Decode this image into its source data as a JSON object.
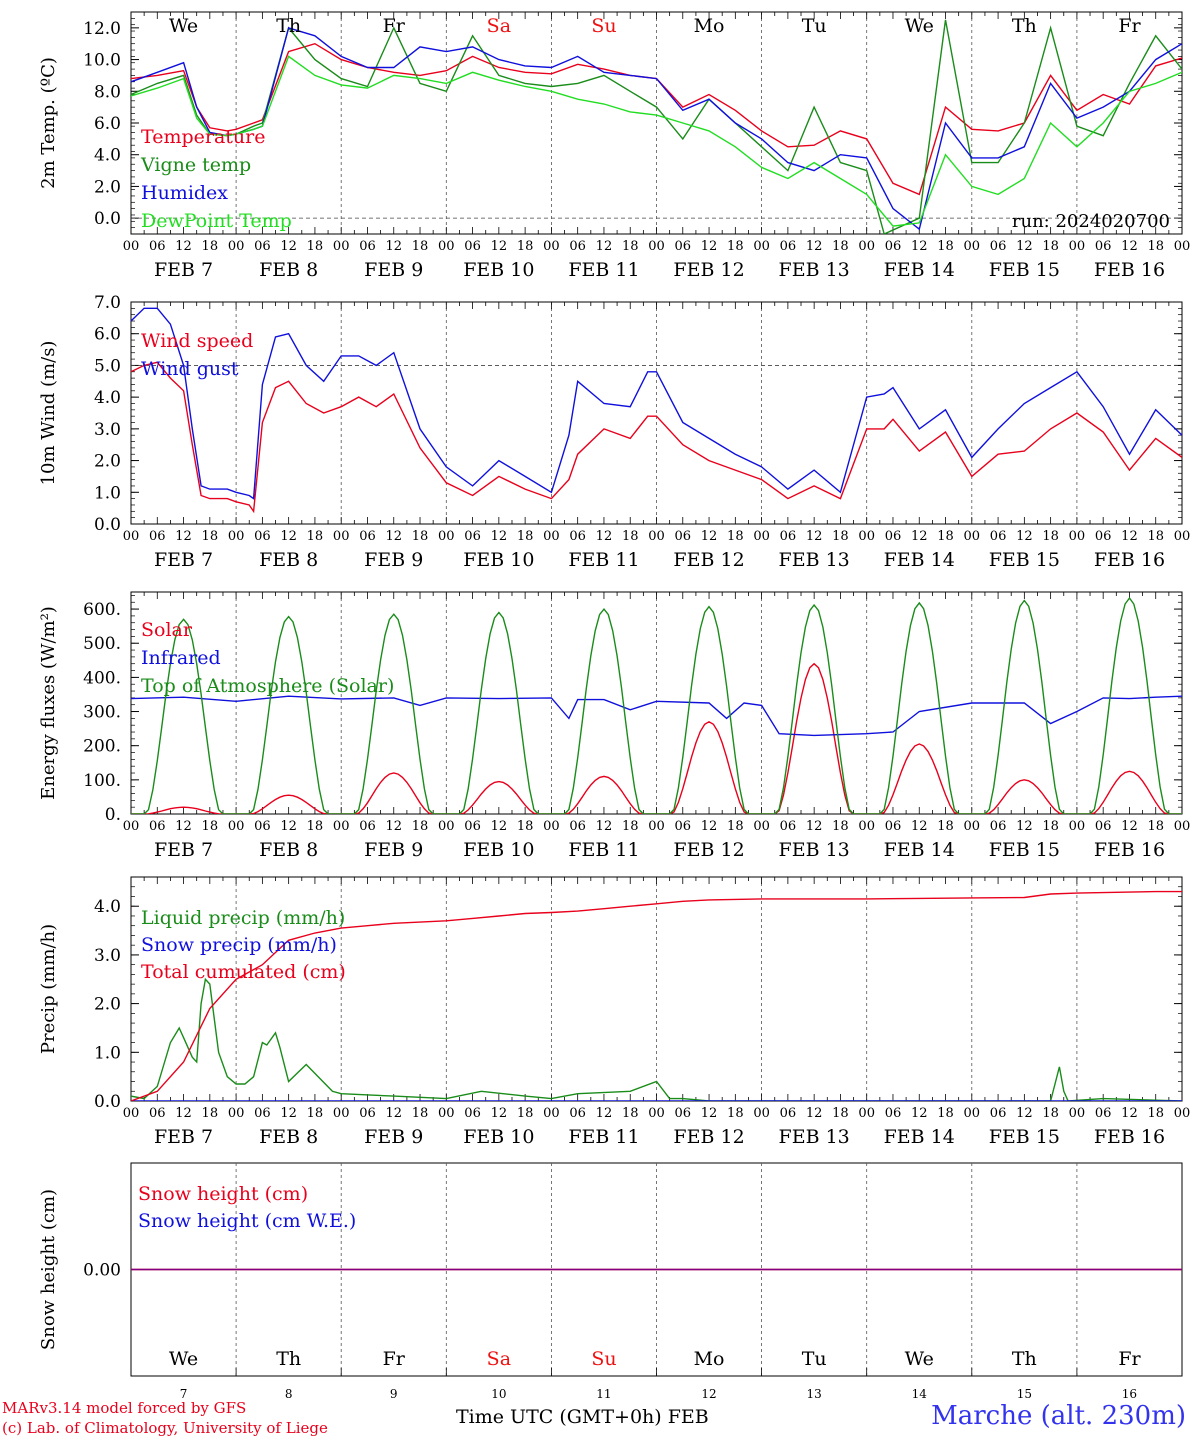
{
  "station": "Marche (alt. 230m)",
  "credits": [
    "MARv3.14 model forced by GFS",
    "(c) Lab. of Climatology, University of Liege"
  ],
  "x_axis_title": "Time UTC (GMT+0h) FEB",
  "hour_ticks": [
    "00",
    "06",
    "12",
    "18"
  ],
  "final_tick": "00",
  "dates": [
    "FEB  7",
    "FEB  8",
    "FEB  9",
    "FEB 10",
    "FEB 11",
    "FEB 12",
    "FEB 13",
    "FEB 14",
    "FEB 15",
    "FEB 16"
  ],
  "bottom_day_numbers": [
    "7",
    "8",
    "9",
    "10",
    "11",
    "12",
    "13",
    "14",
    "15",
    "16"
  ],
  "weekdays": [
    {
      "label": "We",
      "color": "#000000"
    },
    {
      "label": "Th",
      "color": "#000000"
    },
    {
      "label": "Fr",
      "color": "#000000"
    },
    {
      "label": "Sa",
      "color": "#ee1111"
    },
    {
      "label": "Su",
      "color": "#ee1111"
    },
    {
      "label": "Mo",
      "color": "#000000"
    },
    {
      "label": "Tu",
      "color": "#000000"
    },
    {
      "label": "We",
      "color": "#000000"
    },
    {
      "label": "Th",
      "color": "#000000"
    },
    {
      "label": "Fr",
      "color": "#000000"
    }
  ],
  "colors": {
    "red": "#e8001c",
    "green": "#1a8c1a",
    "blue": "#1010dd",
    "lightgreen": "#22dd22",
    "purple": "#800080"
  },
  "chart_data": [
    {
      "type": "line",
      "id": "temp",
      "ylabel": "2m Temp. (ºC)",
      "ylim": [
        -1,
        13
      ],
      "yticks": [
        0,
        2,
        4,
        6,
        8,
        10,
        12
      ],
      "yticklabels": [
        "0.0",
        "2.0",
        "4.0",
        "6.0",
        "8.0",
        "10.0",
        "12.0"
      ],
      "annotation": "run: 2024020700",
      "x_unit": "hours since FEB 7 00 UTC",
      "x_range": [
        0,
        240
      ],
      "series": [
        {
          "name": "Temperature",
          "color": "red",
          "x": [
            0,
            6,
            12,
            15,
            18,
            22,
            24,
            28,
            30,
            36,
            42,
            48,
            54,
            60,
            66,
            72,
            78,
            84,
            90,
            96,
            102,
            108,
            114,
            120,
            126,
            132,
            138,
            144,
            150,
            156,
            162,
            168,
            174,
            180,
            186,
            192,
            198,
            204,
            210,
            216,
            222,
            228,
            234,
            240
          ],
          "y": [
            8.8,
            9.0,
            9.3,
            7.0,
            5.7,
            5.5,
            5.6,
            6.0,
            6.2,
            10.5,
            11.0,
            10.0,
            9.5,
            9.2,
            9.0,
            9.3,
            10.2,
            9.5,
            9.2,
            9.1,
            9.7,
            9.4,
            9.0,
            8.8,
            7.0,
            7.8,
            6.8,
            5.5,
            4.5,
            4.6,
            5.5,
            5.0,
            2.2,
            1.5,
            7.0,
            5.6,
            5.5,
            6.0,
            9.0,
            6.8,
            7.8,
            7.2,
            9.6,
            10.1
          ]
        },
        {
          "name": "Vigne temp",
          "color": "green",
          "x": [
            0,
            6,
            12,
            15,
            18,
            22,
            24,
            28,
            30,
            36,
            42,
            48,
            54,
            60,
            66,
            72,
            78,
            84,
            90,
            96,
            102,
            108,
            114,
            120,
            126,
            132,
            138,
            144,
            150,
            156,
            162,
            168,
            172,
            180,
            186,
            192,
            198,
            204,
            210,
            216,
            222,
            228,
            234,
            240
          ],
          "y": [
            7.8,
            8.5,
            9.0,
            6.5,
            5.3,
            5.2,
            5.3,
            5.8,
            6.0,
            12.0,
            10.0,
            8.8,
            8.3,
            12.0,
            8.5,
            8.0,
            11.5,
            9.0,
            8.5,
            8.3,
            8.5,
            9.0,
            8.0,
            7.0,
            5.0,
            7.5,
            6.0,
            4.5,
            3.0,
            7.0,
            3.5,
            3.0,
            -1.0,
            0.0,
            12.5,
            3.5,
            3.5,
            6.0,
            12.0,
            5.8,
            5.2,
            8.5,
            11.5,
            9.4
          ]
        },
        {
          "name": "Humidex",
          "color": "blue",
          "x": [
            0,
            6,
            12,
            15,
            18,
            22,
            24,
            28,
            30,
            36,
            42,
            48,
            54,
            60,
            66,
            72,
            78,
            84,
            90,
            96,
            102,
            108,
            114,
            120,
            126,
            132,
            138,
            144,
            150,
            156,
            162,
            168,
            174,
            180,
            186,
            192,
            198,
            204,
            210,
            216,
            222,
            228,
            234,
            240
          ],
          "y": [
            8.6,
            9.2,
            9.8,
            7.0,
            5.4,
            5.2,
            5.3,
            5.6,
            5.8,
            12.0,
            11.5,
            10.2,
            9.5,
            9.5,
            10.8,
            10.5,
            10.8,
            10.0,
            9.6,
            9.5,
            10.2,
            9.2,
            9.0,
            8.8,
            6.8,
            7.5,
            6.0,
            5.0,
            3.5,
            3.0,
            4.0,
            3.8,
            0.6,
            -0.7,
            6.0,
            3.8,
            3.8,
            4.5,
            8.5,
            6.3,
            7.0,
            8.0,
            10.0,
            11.0
          ]
        },
        {
          "name": "DewPoint Temp",
          "color": "lightgreen",
          "x": [
            0,
            6,
            12,
            15,
            18,
            22,
            24,
            28,
            30,
            36,
            42,
            48,
            54,
            60,
            66,
            72,
            78,
            84,
            90,
            96,
            102,
            108,
            114,
            120,
            126,
            132,
            138,
            144,
            150,
            156,
            162,
            168,
            174,
            180,
            186,
            192,
            198,
            204,
            210,
            216,
            222,
            228,
            234,
            240
          ],
          "y": [
            7.7,
            8.2,
            8.8,
            6.3,
            5.3,
            5.2,
            5.3,
            5.6,
            5.8,
            10.2,
            9.0,
            8.4,
            8.2,
            9.0,
            8.8,
            8.5,
            9.2,
            8.7,
            8.3,
            8.0,
            7.5,
            7.2,
            6.7,
            6.5,
            6.0,
            5.5,
            4.5,
            3.2,
            2.5,
            3.5,
            2.5,
            1.5,
            -0.5,
            -0.3,
            4.0,
            2.0,
            1.5,
            2.5,
            6.0,
            4.5,
            6.0,
            8.0,
            8.5,
            9.2
          ]
        }
      ]
    },
    {
      "type": "line",
      "id": "wind",
      "ylabel": "10m Wind (m/s)",
      "ylim": [
        0,
        7
      ],
      "yticks": [
        0,
        1,
        2,
        3,
        4,
        5,
        6,
        7
      ],
      "yticklabels": [
        "0.0",
        "1.0",
        "2.0",
        "3.0",
        "4.0",
        "5.0",
        "6.0",
        "7.0"
      ],
      "dashed_reference": 5.0,
      "series": [
        {
          "name": "Wind speed",
          "color": "red",
          "x": [
            0,
            3,
            6,
            9,
            12,
            14,
            16,
            18,
            22,
            24,
            27,
            28,
            30,
            33,
            36,
            40,
            44,
            48,
            52,
            56,
            60,
            66,
            72,
            78,
            84,
            90,
            96,
            100,
            102,
            108,
            114,
            118,
            120,
            126,
            132,
            138,
            144,
            150,
            156,
            162,
            168,
            172,
            174,
            180,
            186,
            192,
            198,
            204,
            210,
            216,
            222,
            228,
            234,
            240
          ],
          "y": [
            4.8,
            5.0,
            5.1,
            4.6,
            4.2,
            2.5,
            0.9,
            0.8,
            0.8,
            0.7,
            0.6,
            0.4,
            3.2,
            4.3,
            4.5,
            3.8,
            3.5,
            3.7,
            4.0,
            3.7,
            4.1,
            2.4,
            1.3,
            0.9,
            1.5,
            1.1,
            0.8,
            1.4,
            2.2,
            3.0,
            2.7,
            3.4,
            3.4,
            2.5,
            2.0,
            1.7,
            1.4,
            0.8,
            1.2,
            0.8,
            3.0,
            3.0,
            3.3,
            2.3,
            2.9,
            1.5,
            2.2,
            2.3,
            3.0,
            3.5,
            2.9,
            1.7,
            2.7,
            2.1
          ]
        },
        {
          "name": "Wind gust",
          "color": "blue",
          "x": [
            0,
            3,
            6,
            9,
            12,
            14,
            16,
            18,
            22,
            24,
            27,
            28,
            30,
            33,
            36,
            40,
            44,
            48,
            52,
            56,
            60,
            66,
            72,
            78,
            84,
            90,
            96,
            100,
            102,
            108,
            114,
            118,
            120,
            126,
            132,
            138,
            144,
            150,
            156,
            162,
            168,
            172,
            174,
            180,
            186,
            192,
            198,
            204,
            210,
            216,
            222,
            228,
            234,
            240
          ],
          "y": [
            6.4,
            6.8,
            6.8,
            6.3,
            5.0,
            3.0,
            1.2,
            1.1,
            1.1,
            1.0,
            0.9,
            0.8,
            4.4,
            5.9,
            6.0,
            5.0,
            4.5,
            5.3,
            5.3,
            5.0,
            5.4,
            3.0,
            1.8,
            1.2,
            2.0,
            1.5,
            1.0,
            2.8,
            4.5,
            3.8,
            3.7,
            4.8,
            4.8,
            3.2,
            2.7,
            2.2,
            1.8,
            1.1,
            1.7,
            1.0,
            4.0,
            4.1,
            4.3,
            3.0,
            3.6,
            2.1,
            3.0,
            3.8,
            4.3,
            4.8,
            3.7,
            2.2,
            3.6,
            2.8
          ]
        }
      ]
    },
    {
      "type": "line",
      "id": "energy",
      "ylabel": "Energy fluxes (W/m²)",
      "ylim": [
        0,
        650
      ],
      "yticks": [
        0,
        100,
        200,
        300,
        400,
        500,
        600
      ],
      "yticklabels": [
        "0.",
        "100.",
        "200.",
        "300.",
        "400.",
        "500.",
        "600."
      ],
      "series": [
        {
          "name": "Solar",
          "color": "red",
          "peaks": [
            20,
            55,
            120,
            95,
            110,
            270,
            440,
            205,
            100,
            125
          ]
        },
        {
          "name": "Infrared",
          "color": "blue",
          "x": [
            0,
            12,
            24,
            36,
            48,
            60,
            66,
            72,
            84,
            96,
            100,
            102,
            108,
            114,
            120,
            132,
            136,
            140,
            144,
            148,
            156,
            168,
            174,
            180,
            192,
            204,
            210,
            216,
            222,
            228,
            234,
            240
          ],
          "y": [
            338,
            342,
            330,
            345,
            337,
            340,
            318,
            340,
            338,
            340,
            280,
            335,
            335,
            305,
            330,
            325,
            280,
            325,
            318,
            235,
            230,
            235,
            240,
            300,
            325,
            325,
            265,
            300,
            340,
            338,
            342,
            345
          ]
        },
        {
          "name": "Top of Atmosphere (Solar)",
          "color": "green",
          "peaks": [
            570,
            578,
            585,
            590,
            600,
            607,
            612,
            618,
            625,
            632
          ]
        }
      ]
    },
    {
      "type": "line",
      "id": "precip",
      "ylabel": "Precip (mm/h)",
      "ylim": [
        0,
        4.6
      ],
      "yticks": [
        0,
        1,
        2,
        3,
        4
      ],
      "yticklabels": [
        "0.0",
        "1.0",
        "2.0",
        "3.0",
        "4.0"
      ],
      "series": [
        {
          "name": "Liquid precip (mm/h)",
          "color": "green",
          "x": [
            0,
            3,
            6,
            9,
            11,
            12,
            14,
            15,
            16,
            17,
            18,
            20,
            22,
            24,
            26,
            28,
            30,
            31,
            33,
            34,
            36,
            40,
            46,
            48,
            60,
            72,
            80,
            90,
            96,
            102,
            114,
            120,
            123,
            126,
            132,
            144,
            150,
            162,
            192,
            204,
            210,
            212,
            213,
            214,
            222,
            240
          ],
          "y": [
            0.1,
            0.05,
            0.3,
            1.2,
            1.5,
            1.3,
            0.9,
            0.8,
            2.0,
            2.5,
            2.4,
            1.0,
            0.5,
            0.35,
            0.35,
            0.5,
            1.2,
            1.15,
            1.4,
            1.1,
            0.4,
            0.75,
            0.2,
            0.15,
            0.1,
            0.05,
            0.2,
            0.1,
            0.05,
            0.15,
            0.2,
            0.4,
            0.05,
            0.05,
            0.0,
            0.0,
            0.0,
            0.0,
            0.0,
            0.0,
            0.0,
            0.7,
            0.2,
            0.0,
            0.05,
            0.0
          ]
        },
        {
          "name": "Snow precip (mm/h)",
          "color": "blue",
          "x": [
            0,
            240
          ],
          "y": [
            0,
            0
          ]
        },
        {
          "name": "Total cumulated (cm)",
          "color": "red",
          "x": [
            0,
            6,
            12,
            18,
            24,
            30,
            36,
            42,
            48,
            54,
            60,
            72,
            78,
            84,
            90,
            96,
            102,
            108,
            114,
            120,
            126,
            132,
            138,
            144,
            150,
            156,
            162,
            168,
            180,
            192,
            204,
            210,
            216,
            222,
            228,
            234,
            240
          ],
          "y": [
            0.0,
            0.2,
            0.8,
            1.9,
            2.5,
            2.8,
            3.3,
            3.45,
            3.55,
            3.6,
            3.65,
            3.7,
            3.75,
            3.8,
            3.85,
            3.87,
            3.9,
            3.95,
            4.0,
            4.05,
            4.1,
            4.13,
            4.14,
            4.15,
            4.15,
            4.15,
            4.15,
            4.15,
            4.16,
            4.17,
            4.18,
            4.25,
            4.27,
            4.28,
            4.29,
            4.3,
            4.3
          ]
        }
      ]
    },
    {
      "type": "line",
      "id": "snow",
      "ylabel": "Snow height (cm)",
      "yticks": [
        0
      ],
      "yticklabels": [
        "0.00"
      ],
      "series": [
        {
          "name": "Snow height (cm)",
          "color": "red",
          "x": [
            0,
            240
          ],
          "y": [
            0,
            0
          ]
        },
        {
          "name": "Snow height (cm W.E.)",
          "color": "blue",
          "x": [
            0,
            240
          ],
          "y": [
            0,
            0
          ]
        }
      ]
    }
  ]
}
